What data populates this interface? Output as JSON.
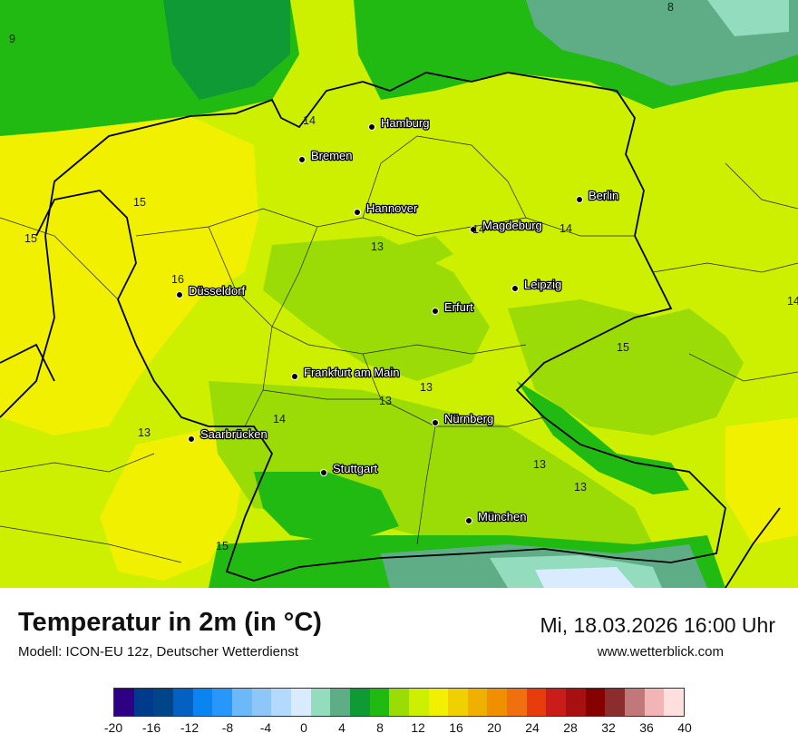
{
  "map": {
    "cities": [
      {
        "name": "Hamburg"
      },
      {
        "name": "Bremen"
      },
      {
        "name": "Hannover"
      },
      {
        "name": "Berlin"
      },
      {
        "name": "Magdeburg"
      },
      {
        "name": "Düsseldorf"
      },
      {
        "name": "Leipzig"
      },
      {
        "name": "Erfurt"
      },
      {
        "name": "Frankfurt am Main"
      },
      {
        "name": "Nürnberg"
      },
      {
        "name": "Saarbrücken"
      },
      {
        "name": "Stuttgart"
      },
      {
        "name": "München"
      }
    ],
    "isotherm_labels": [
      "9",
      "14",
      "15",
      "15",
      "16",
      "13",
      "14",
      "14",
      "15",
      "13",
      "13",
      "14",
      "13",
      "13",
      "13",
      "15",
      "8",
      "14"
    ]
  },
  "footer": {
    "title": "Temperatur in 2m (in °C)",
    "model": "Modell: ICON-EU 12z, Deutscher Wetterdienst",
    "datetime": "Mi, 18.03.2026 16:00 Uhr",
    "website": "www.wetterblick.com"
  },
  "legend": {
    "colors": [
      "#2e0083",
      "#003a8c",
      "#00458a",
      "#0561c1",
      "#0a84f0",
      "#2897fb",
      "#6bb9f8",
      "#8fc6f8",
      "#b3d9fc",
      "#d8ebff",
      "#93dcbd",
      "#5fad87",
      "#109a36",
      "#21ba13",
      "#9bdc07",
      "#ccf000",
      "#f0f000",
      "#f0d000",
      "#f0b000",
      "#f09000",
      "#f07010",
      "#e83c0c",
      "#ca1c18",
      "#a80f10",
      "#870000",
      "#8c2d2d",
      "#c07878",
      "#f2b4b4",
      "#ffdede"
    ],
    "ticks": [
      "-20",
      "-16",
      "-12",
      "-8",
      "-4",
      "0",
      "4",
      "8",
      "12",
      "16",
      "20",
      "24",
      "28",
      "32",
      "36",
      "40"
    ]
  }
}
